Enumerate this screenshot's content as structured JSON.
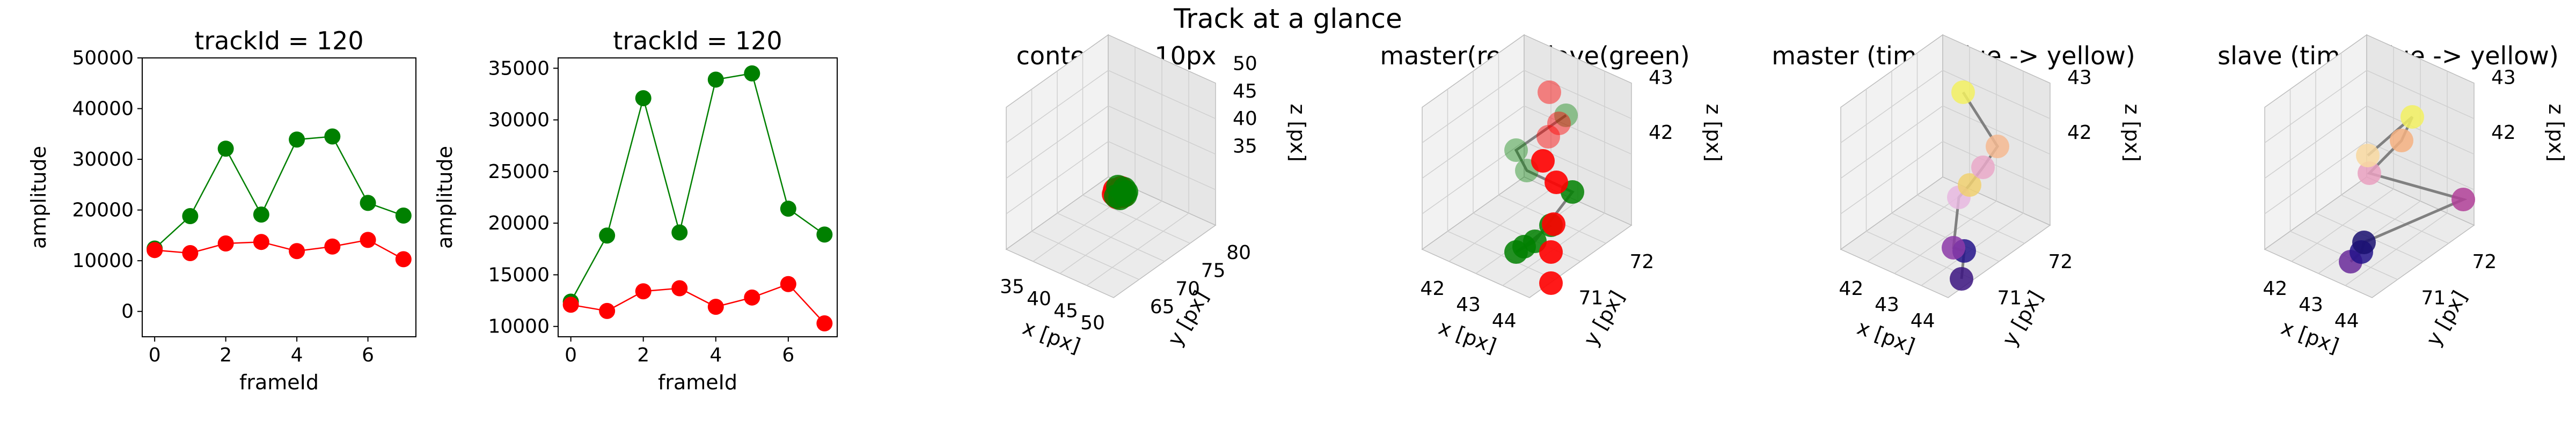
{
  "figure": {
    "suptitle": "Track at a glance"
  },
  "chart_data": [
    {
      "type": "line",
      "title": "trackId = 120",
      "xlabel": "frameId",
      "ylabel": "amplitude",
      "xlim": [
        -0.35,
        7.35
      ],
      "ylim": [
        -5000,
        50000
      ],
      "xticks": [
        0,
        2,
        4,
        6
      ],
      "yticks": [
        0,
        10000,
        20000,
        30000,
        40000,
        50000
      ],
      "x": [
        0,
        1,
        2,
        3,
        4,
        5,
        6,
        7
      ],
      "series": [
        {
          "color": "#008000",
          "values": [
            12400,
            18800,
            32100,
            19100,
            33900,
            34500,
            21400,
            18900
          ]
        },
        {
          "color": "#ff0000",
          "values": [
            12100,
            11500,
            13400,
            13700,
            11900,
            12800,
            14100,
            10300
          ]
        }
      ]
    },
    {
      "type": "line",
      "title": "trackId = 120",
      "xlabel": "frameId",
      "ylabel": "amplitude",
      "xlim": [
        -0.35,
        7.35
      ],
      "ylim": [
        9000,
        36000
      ],
      "xticks": [
        0,
        2,
        4,
        6
      ],
      "yticks": [
        10000,
        15000,
        20000,
        25000,
        30000,
        35000
      ],
      "x": [
        0,
        1,
        2,
        3,
        4,
        5,
        6,
        7
      ],
      "series": [
        {
          "color": "#008000",
          "values": [
            12400,
            18800,
            32100,
            19100,
            33900,
            34500,
            21400,
            18900
          ]
        },
        {
          "color": "#ff0000",
          "values": [
            12100,
            11500,
            13400,
            13700,
            11900,
            12800,
            14100,
            10300
          ]
        }
      ]
    },
    {
      "type": "scatter",
      "title": "context +- 10px",
      "xlabel": "x [px]",
      "ylabel": "y [px]",
      "zlabel": "z [px]",
      "xticks": [
        "35",
        "40",
        "45",
        "50"
      ],
      "yticks": [
        "65",
        "70",
        "75",
        "80"
      ],
      "zticks": [
        "35",
        "40",
        "45",
        "50"
      ]
    },
    {
      "type": "scatter",
      "title": "master(red) slave(green)",
      "xlabel": "x [px]",
      "ylabel": "y [px]",
      "zlabel": "z [px]",
      "xticks": [
        "42",
        "43",
        "44"
      ],
      "yticks": [
        "71",
        "72"
      ],
      "zticks": [
        "42",
        "43"
      ]
    },
    {
      "type": "scatter",
      "title": "master (time: blue -> yellow)",
      "xlabel": "x [px]",
      "ylabel": "y [px]",
      "zlabel": "z [px]",
      "xticks": [
        "42",
        "43",
        "44"
      ],
      "yticks": [
        "71",
        "72"
      ],
      "zticks": [
        "42",
        "43"
      ]
    },
    {
      "type": "scatter",
      "title": "slave (time: blue -> yellow)",
      "xlabel": "x [px]",
      "ylabel": "y [px]",
      "zlabel": "z [px]",
      "xticks": [
        "42",
        "43",
        "44"
      ],
      "yticks": [
        "71",
        "72"
      ],
      "zticks": [
        "42",
        "43"
      ]
    }
  ]
}
